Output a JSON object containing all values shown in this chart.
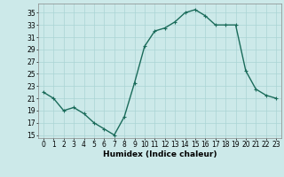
{
  "x": [
    0,
    1,
    2,
    3,
    4,
    5,
    6,
    7,
    8,
    9,
    10,
    11,
    12,
    13,
    14,
    15,
    16,
    17,
    18,
    19,
    20,
    21,
    22,
    23
  ],
  "y": [
    22,
    21,
    19,
    19.5,
    18.5,
    17,
    16,
    15,
    18,
    23.5,
    29.5,
    32,
    32.5,
    33.5,
    35,
    35.5,
    34.5,
    33,
    33,
    33,
    25.5,
    22.5,
    21.5,
    21
  ],
  "line_color": "#1a6b5a",
  "marker": "+",
  "marker_size": 3,
  "linewidth": 1.0,
  "background_color": "#cce9e9",
  "grid_color": "#aad4d4",
  "xlabel": "Humidex (Indice chaleur)",
  "xlabel_fontsize": 6.5,
  "ylabel_ticks": [
    15,
    17,
    19,
    21,
    23,
    25,
    27,
    29,
    31,
    33,
    35
  ],
  "xtick_labels": [
    "0",
    "1",
    "2",
    "3",
    "4",
    "5",
    "6",
    "7",
    "8",
    "9",
    "10",
    "11",
    "12",
    "13",
    "14",
    "15",
    "16",
    "17",
    "18",
    "19",
    "20",
    "21",
    "22",
    "23"
  ],
  "ylim": [
    14.5,
    36.5
  ],
  "xlim": [
    -0.5,
    23.5
  ],
  "tick_fontsize": 5.5,
  "title": ""
}
